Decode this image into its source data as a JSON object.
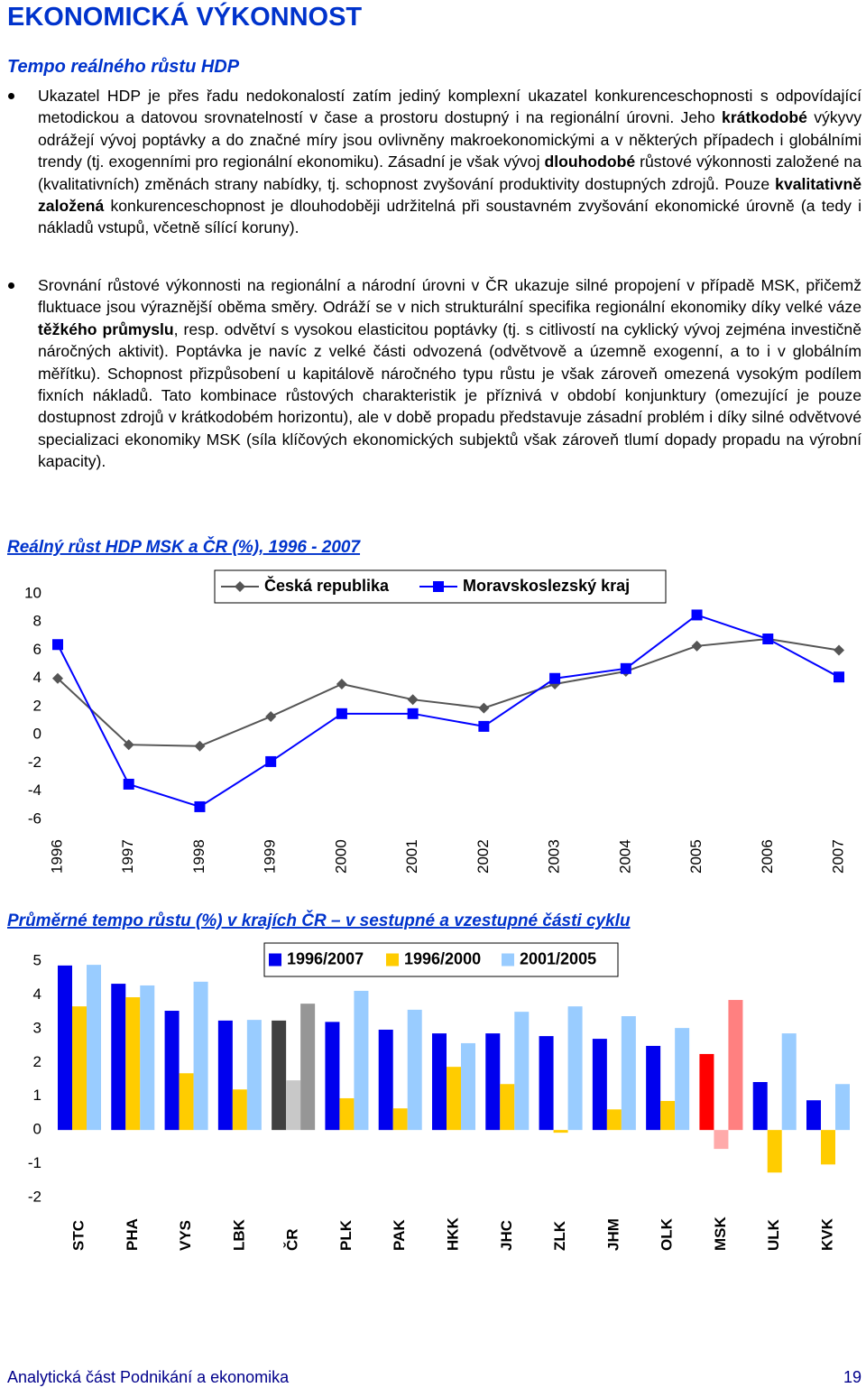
{
  "header": {
    "title": "EKONOMICKÁ VÝKONNOST",
    "subtitle": "Tempo reálného růstu HDP"
  },
  "bullets": [
    {
      "runs": [
        {
          "text": "Ukazatel HDP je přes řadu nedokonalostí zatím jediný komplexní ukazatel konkurenceschopnosti s odpovídající metodickou a datovou srovnatelností v čase a prostoru dostupný i na regionální úrovni. Jeho "
        },
        {
          "text": "krátkodobé",
          "bold": true
        },
        {
          "text": " výkyvy odrážejí vývoj poptávky a do značné míry jsou ovlivněny makroekonomickými a v některých případech i globálními trendy (tj. exogenními pro regionální ekonomiku). Zásadní je však vývoj "
        },
        {
          "text": "dlouhodobé",
          "bold": true
        },
        {
          "text": " růstové výkonnosti založené na (kvalitativních) změnách strany nabídky, tj. schopnost zvyšování produktivity dostupných zdrojů. Pouze "
        },
        {
          "text": "kvalitativně založená",
          "bold": true
        },
        {
          "text": " konkurenceschopnost je dlouhodoběji udržitelná při soustavném zvyšování ekonomické úrovně (a tedy i nákladů vstupů, včetně sílící koruny)."
        }
      ]
    },
    {
      "runs": [
        {
          "text": "Srovnání růstové výkonnosti na regionální a národní úrovni v ČR ukazuje silné propojení v případě MSK, přičemž fluktuace jsou výraznější oběma směry. Odráží se v nich strukturální specifika regionální ekonomiky díky velké váze "
        },
        {
          "text": "těžkého průmyslu",
          "bold": true
        },
        {
          "text": ", resp. odvětví s vysokou elasticitou poptávky (tj. s citlivostí na cyklický vývoj zejména investičně náročných aktivit). Poptávka je navíc z velké části odvozená (odvětvově a územně exogenní, a to i v globálním měřítku). Schopnost přizpůsobení u kapitálově náročného typu růstu je však zároveň omezená vysokým podílem fixních nákladů. Tato kombinace růstových charakteristik je příznivá v období konjunktury (omezující je pouze dostupnost zdrojů v krátkodobém horizontu), ale v době propadu představuje zásadní problém i díky silné odvětvové specializaci ekonomiky MSK (síla klíčových ekonomických subjektů však zároveň tlumí dopady propadu na výrobní kapacity)."
        }
      ]
    }
  ],
  "chart_data": [
    {
      "type": "line",
      "title": "Reálný růst HDP MSK a ČR (%), 1996 - 2007",
      "categories": [
        "1996",
        "1997",
        "1998",
        "1999",
        "2000",
        "2001",
        "2002",
        "2003",
        "2004",
        "2005",
        "2006",
        "2007"
      ],
      "series": [
        {
          "name": "Česká republika",
          "color": "#555555",
          "marker": "diamond",
          "values": [
            4.0,
            -0.7,
            -0.8,
            1.3,
            3.6,
            2.5,
            1.9,
            3.6,
            4.5,
            6.3,
            6.8,
            6.0
          ]
        },
        {
          "name": "Moravskoslezský kraj",
          "color": "#0000ff",
          "marker": "square",
          "values": [
            6.4,
            -3.5,
            -5.1,
            -1.9,
            1.5,
            1.5,
            0.6,
            4.0,
            4.7,
            8.5,
            6.8,
            4.1
          ]
        }
      ],
      "ylim": [
        -6,
        10
      ],
      "yticks": [
        -6,
        -4,
        -2,
        0,
        2,
        4,
        6,
        8,
        10
      ],
      "grid": false,
      "legend": "top"
    },
    {
      "type": "bar",
      "title": "Průměrné tempo růstu (%) v krajích ČR – v sestupné a vzestupné části cyklu",
      "categories": [
        "STC",
        "PHA",
        "VYS",
        "LBK",
        "ČR",
        "PLK",
        "PAK",
        "HKK",
        "JHC",
        "ZLK",
        "JHM",
        "OLK",
        "MSK",
        "ULK",
        "KVK"
      ],
      "series": [
        {
          "name": "1996/2007",
          "color": "#0000ee",
          "values": [
            4.87,
            4.33,
            3.53,
            3.24,
            3.24,
            3.2,
            2.97,
            2.86,
            2.86,
            2.78,
            2.7,
            2.49,
            2.25,
            1.42,
            0.88
          ],
          "colors": [
            "#0000ee",
            "#0000ee",
            "#0000ee",
            "#0000ee",
            "#404040",
            "#0000ee",
            "#0000ee",
            "#0000ee",
            "#0000ee",
            "#0000ee",
            "#0000ee",
            "#0000ee",
            "#ff0000",
            "#0000ee",
            "#0000ee"
          ]
        },
        {
          "name": "1996/2000",
          "color": "#ffcc00",
          "values": [
            3.66,
            3.93,
            1.68,
            1.2,
            1.47,
            0.94,
            0.64,
            1.87,
            1.36,
            -0.08,
            0.61,
            0.86,
            -0.56,
            -1.26,
            -1.02
          ],
          "colors": [
            "#ffcc00",
            "#ffcc00",
            "#ffcc00",
            "#ffcc00",
            "#c8c8c8",
            "#ffcc00",
            "#ffcc00",
            "#ffcc00",
            "#ffcc00",
            "#ffcc00",
            "#ffcc00",
            "#ffcc00",
            "#ffaaaa",
            "#ffcc00",
            "#ffcc00"
          ]
        },
        {
          "name": "2001/2005",
          "color": "#99ccff",
          "values": [
            4.89,
            4.28,
            4.39,
            3.26,
            3.74,
            4.12,
            3.56,
            2.57,
            3.5,
            3.66,
            3.37,
            3.02,
            3.85,
            2.86,
            1.36
          ],
          "colors": [
            "#99ccff",
            "#99ccff",
            "#99ccff",
            "#99ccff",
            "#969696",
            "#99ccff",
            "#99ccff",
            "#99ccff",
            "#99ccff",
            "#99ccff",
            "#99ccff",
            "#99ccff",
            "#ff8080",
            "#99ccff",
            "#99ccff"
          ]
        }
      ],
      "ylim": [
        -2,
        5
      ],
      "yticks": [
        -2,
        -1,
        0,
        1,
        2,
        3,
        4,
        5
      ],
      "grid": false,
      "legend": "top"
    }
  ],
  "footer": {
    "left": "Analytická část Podnikání a ekonomika",
    "page": "19"
  }
}
